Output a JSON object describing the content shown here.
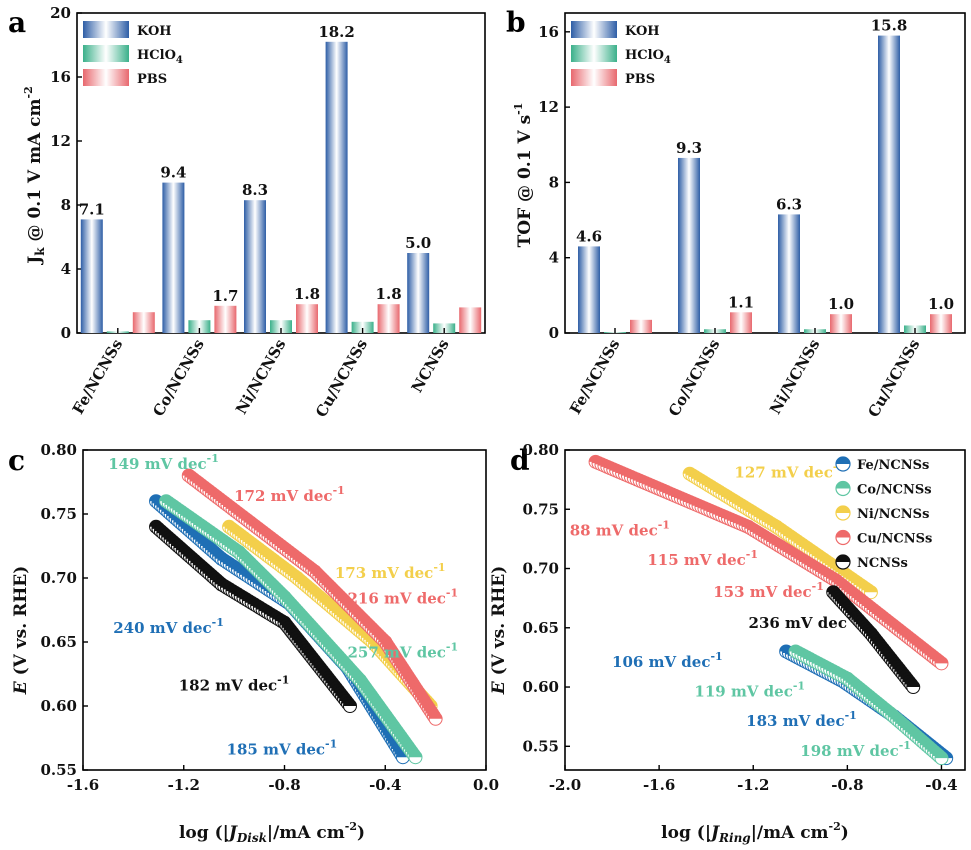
{
  "colors": {
    "koh": "#2e5ea6",
    "hclo4": "#3bb08a",
    "pbs": "#e8686e",
    "fe": "#1f6fb5",
    "co": "#5fc6a3",
    "ni": "#f3cf4b",
    "cu": "#ee6a6a",
    "ncnss": "#111111"
  },
  "panels": {
    "a": "a",
    "b": "b",
    "c": "c",
    "d": "d"
  },
  "chart_data": [
    {
      "panel": "a",
      "type": "bar",
      "categories": [
        "Fe/NCNSs",
        "Co/NCNSs",
        "Ni/NCNSs",
        "Cu/NCNSs",
        "NCNSs"
      ],
      "series": [
        {
          "name": "KOH",
          "values": [
            7.1,
            9.4,
            8.3,
            18.2,
            5.0
          ]
        },
        {
          "name": "HClO4",
          "values": [
            0.1,
            0.8,
            0.8,
            0.7,
            0.6
          ]
        },
        {
          "name": "PBS",
          "values": [
            1.3,
            1.7,
            1.8,
            1.8,
            1.6
          ]
        }
      ],
      "legend": {
        "koh": "KOH",
        "hclo4_main": "HClO",
        "hclo4_sub": "4",
        "pbs": "PBS"
      },
      "data_labels": [
        {
          "series": 0,
          "index": 0,
          "text": "7.1"
        },
        {
          "series": 0,
          "index": 1,
          "text": "9.4"
        },
        {
          "series": 0,
          "index": 2,
          "text": "8.3"
        },
        {
          "series": 0,
          "index": 3,
          "text": "18.2"
        },
        {
          "series": 0,
          "index": 4,
          "text": "5.0"
        },
        {
          "series": 2,
          "index": 1,
          "text": "1.7"
        },
        {
          "series": 2,
          "index": 2,
          "text": "1.8"
        },
        {
          "series": 2,
          "index": 3,
          "text": "1.8"
        }
      ],
      "ylabel": {
        "main": "J",
        "sub": "k",
        "rest": " @ 0.1 V mA cm",
        "sup": "-2"
      },
      "ylim": [
        0,
        20
      ],
      "yticks": [
        "0",
        "4",
        "8",
        "12",
        "16",
        "20"
      ],
      "legend_position": "top-left"
    },
    {
      "panel": "b",
      "type": "bar",
      "categories": [
        "Fe/NCNSs",
        "Co/NCNSs",
        "Ni/NCNSs",
        "Cu/NCNSs"
      ],
      "series": [
        {
          "name": "KOH",
          "values": [
            4.6,
            9.3,
            6.3,
            15.8
          ]
        },
        {
          "name": "HClO4",
          "values": [
            0.05,
            0.2,
            0.2,
            0.4
          ]
        },
        {
          "name": "PBS",
          "values": [
            0.7,
            1.1,
            1.0,
            1.0
          ]
        }
      ],
      "legend": {
        "koh": "KOH",
        "hclo4_main": "HClO",
        "hclo4_sub": "4",
        "pbs": "PBS"
      },
      "data_labels": [
        {
          "series": 0,
          "index": 0,
          "text": "4.6"
        },
        {
          "series": 0,
          "index": 1,
          "text": "9.3"
        },
        {
          "series": 0,
          "index": 2,
          "text": "6.3"
        },
        {
          "series": 0,
          "index": 3,
          "text": "15.8"
        },
        {
          "series": 2,
          "index": 1,
          "text": "1.1"
        },
        {
          "series": 2,
          "index": 2,
          "text": "1.0"
        },
        {
          "series": 2,
          "index": 3,
          "text": "1.0"
        }
      ],
      "ylabel": {
        "main": "TOF @ 0.1 V s",
        "sup": "-1"
      },
      "ylim": [
        0,
        17
      ],
      "yticks": [
        "0",
        "4",
        "8",
        "12",
        "16"
      ],
      "legend_position": "top-left"
    },
    {
      "panel": "c",
      "type": "scatter",
      "xlabel": {
        "pre": "log (",
        "bar": "|",
        "J": "J",
        "sub": "Disk",
        "post": "/mA cm",
        "sup": "-2",
        "end": ")"
      },
      "ylabel": {
        "E": "E",
        "rest": " (V vs. RHE)"
      },
      "xlim": [
        -1.6,
        0.0
      ],
      "ylim": [
        0.55,
        0.8
      ],
      "xticks": [
        "-1.6",
        "-1.2",
        "-0.8",
        "-0.4",
        "0.0"
      ],
      "yticks": [
        "0.55",
        "0.60",
        "0.65",
        "0.70",
        "0.75",
        "0.80"
      ],
      "series": [
        {
          "name": "Fe/NCNSs",
          "color": "fe",
          "points": [
            [
              -1.31,
              0.76
            ],
            [
              -1.05,
              0.715
            ],
            [
              -0.78,
              0.68
            ],
            [
              -0.55,
              0.63
            ],
            [
              -0.33,
              0.56
            ]
          ]
        },
        {
          "name": "Co/NCNSs",
          "color": "co",
          "points": [
            [
              -1.27,
              0.76
            ],
            [
              -0.98,
              0.72
            ],
            [
              -0.8,
              0.685
            ],
            [
              -0.5,
              0.62
            ],
            [
              -0.28,
              0.56
            ]
          ]
        },
        {
          "name": "Ni/NCNSs",
          "color": "ni",
          "points": [
            [
              -1.02,
              0.74
            ],
            [
              -0.75,
              0.7
            ],
            [
              -0.45,
              0.65
            ],
            [
              -0.22,
              0.6
            ]
          ]
        },
        {
          "name": "Cu/NCNSs",
          "color": "cu",
          "points": [
            [
              -1.18,
              0.78
            ],
            [
              -0.68,
              0.705
            ],
            [
              -0.4,
              0.65
            ],
            [
              -0.2,
              0.59
            ]
          ]
        },
        {
          "name": "NCNSs",
          "color": "ncnss",
          "points": [
            [
              -1.31,
              0.74
            ],
            [
              -1.05,
              0.695
            ],
            [
              -0.8,
              0.665
            ],
            [
              -0.54,
              0.6
            ]
          ]
        }
      ],
      "annotations": [
        {
          "text": "149 mV dec",
          "sup": "-1",
          "color": "co",
          "x": -1.5,
          "y": 0.785
        },
        {
          "text": "172 mV dec",
          "sup": "-1",
          "color": "cu",
          "x": -1.0,
          "y": 0.76
        },
        {
          "text": "173 mV dec",
          "sup": "-1",
          "color": "ni",
          "x": -0.6,
          "y": 0.7
        },
        {
          "text": "216 mV dec",
          "sup": "-1",
          "color": "cu",
          "x": -0.55,
          "y": 0.68
        },
        {
          "text": "240 mV dec",
          "sup": "-1",
          "color": "fe",
          "x": -1.48,
          "y": 0.657
        },
        {
          "text": "257 mV dec",
          "sup": "-1",
          "color": "co",
          "x": -0.55,
          "y": 0.638
        },
        {
          "text": "182 mV dec",
          "sup": "-1",
          "color": "ncnss",
          "x": -1.22,
          "y": 0.612
        },
        {
          "text": "185 mV dec",
          "sup": "-1",
          "color": "fe",
          "x": -1.03,
          "y": 0.562
        }
      ]
    },
    {
      "panel": "d",
      "type": "scatter",
      "xlabel": {
        "pre": "log (",
        "bar": "|",
        "J": "J",
        "sub": "Ring",
        "post": "/mA cm",
        "sup": "-2",
        "end": ")"
      },
      "ylabel": {
        "E": "E",
        "rest": " (V vs. RHE)"
      },
      "xlim": [
        -2.0,
        -0.3
      ],
      "ylim": [
        0.53,
        0.8
      ],
      "xticks": [
        "-2.0",
        "-1.6",
        "-1.2",
        "-0.8",
        "-0.4"
      ],
      "yticks": [
        "0.55",
        "0.60",
        "0.65",
        "0.70",
        "0.75",
        "0.80"
      ],
      "legend_position": "top-right",
      "series": [
        {
          "name": "Fe/NCNSs",
          "color": "fe",
          "points": [
            [
              -1.06,
              0.63
            ],
            [
              -0.82,
              0.605
            ],
            [
              -0.6,
              0.575
            ],
            [
              -0.38,
              0.54
            ]
          ]
        },
        {
          "name": "Co/NCNSs",
          "color": "co",
          "points": [
            [
              -1.02,
              0.63
            ],
            [
              -0.8,
              0.607
            ],
            [
              -0.62,
              0.578
            ],
            [
              -0.4,
              0.54
            ]
          ]
        },
        {
          "name": "Ni/NCNSs",
          "color": "ni",
          "points": [
            [
              -1.47,
              0.78
            ],
            [
              -1.1,
              0.735
            ],
            [
              -0.7,
              0.68
            ]
          ]
        },
        {
          "name": "Cu/NCNSs",
          "color": "cu",
          "points": [
            [
              -1.87,
              0.79
            ],
            [
              -1.22,
              0.735
            ],
            [
              -0.85,
              0.69
            ],
            [
              -0.4,
              0.62
            ]
          ]
        },
        {
          "name": "NCNSs",
          "color": "ncnss",
          "points": [
            [
              -0.86,
              0.68
            ],
            [
              -0.7,
              0.645
            ],
            [
              -0.52,
              0.6
            ]
          ]
        }
      ],
      "annotations": [
        {
          "text": "127 mV dec",
          "sup": "-1",
          "color": "ni",
          "x": -1.28,
          "y": 0.777
        },
        {
          "text": "88 mV dec",
          "sup": "-1",
          "color": "cu",
          "x": -1.98,
          "y": 0.728
        },
        {
          "text": "115 mV dec",
          "sup": "-1",
          "color": "cu",
          "x": -1.65,
          "y": 0.703
        },
        {
          "text": "153 mV dec",
          "sup": "-1",
          "color": "cu",
          "x": -1.37,
          "y": 0.676
        },
        {
          "text": "236 mV dec",
          "sup": "-1",
          "color": "ncnss",
          "x": -1.22,
          "y": 0.65
        },
        {
          "text": "106 mV dec",
          "sup": "-1",
          "color": "fe",
          "x": -1.8,
          "y": 0.617
        },
        {
          "text": "119 mV dec",
          "sup": "-1",
          "color": "co",
          "x": -1.45,
          "y": 0.592
        },
        {
          "text": "183 mV dec",
          "sup": "-1",
          "color": "fe",
          "x": -1.23,
          "y": 0.567
        },
        {
          "text": "198 mV dec",
          "sup": "-1",
          "color": "co",
          "x": -1.0,
          "y": 0.542
        }
      ]
    }
  ]
}
